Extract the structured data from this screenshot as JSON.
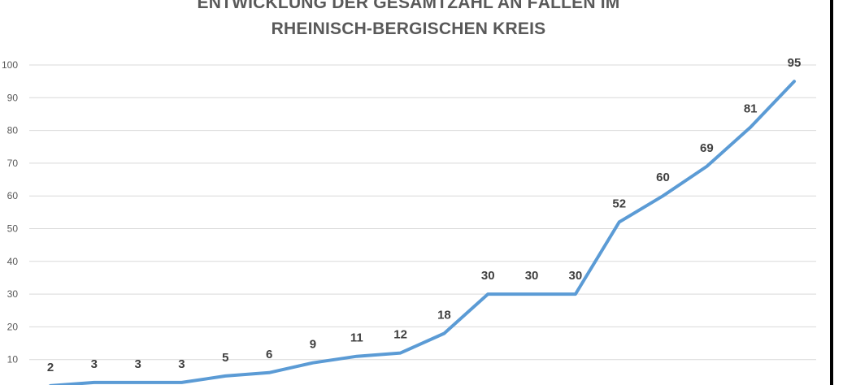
{
  "chart_data": {
    "type": "line",
    "title": [
      "ENTWICKLUNG DER GESAMTZAHL AN FÄLLEN IM",
      "RHEINISCH-BERGISCHEN KREIS"
    ],
    "xlabel": "",
    "ylabel": "",
    "ylim": [
      0,
      100
    ],
    "yticks": [
      10,
      20,
      30,
      40,
      50,
      60,
      70,
      80,
      90,
      100
    ],
    "grid": true,
    "legend": "none",
    "series": [
      {
        "color": "#5b9bd5",
        "values": [
          2,
          3,
          3,
          3,
          5,
          6,
          9,
          11,
          12,
          18,
          30,
          30,
          30,
          52,
          60,
          69,
          81,
          95
        ]
      }
    ]
  }
}
